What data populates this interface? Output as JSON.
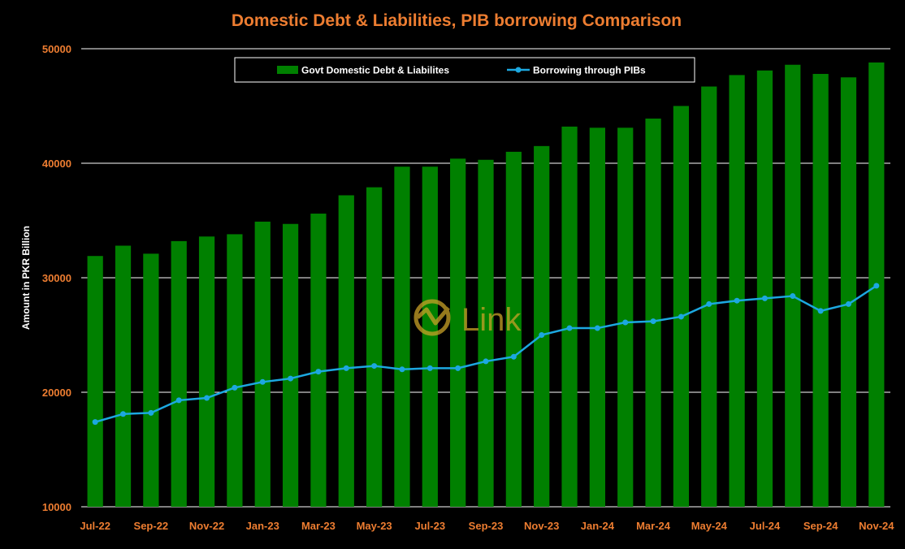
{
  "chart_data": {
    "type": "bar",
    "title": "Domestic Debt & Liabilities, PIB borrowing Comparison",
    "ylabel": "Amount in PKR Billion",
    "xlabel": "",
    "ylim": [
      10000,
      50000
    ],
    "yticks": [
      10000,
      20000,
      30000,
      40000,
      50000
    ],
    "grid": true,
    "legend_position": "top-center",
    "categories": [
      "Jul-22",
      "Aug-22",
      "Sep-22",
      "Oct-22",
      "Nov-22",
      "Dec-22",
      "Jan-23",
      "Feb-23",
      "Mar-23",
      "Apr-23",
      "May-23",
      "Jun-23",
      "Jul-23",
      "Aug-23",
      "Sep-23",
      "Oct-23",
      "Nov-23",
      "Dec-23",
      "Jan-24",
      "Feb-24",
      "Mar-24",
      "Apr-24",
      "May-24",
      "Jun-24",
      "Jul-24",
      "Aug-24",
      "Sep-24",
      "Oct-24",
      "Nov-24"
    ],
    "xtick_labels": [
      "Jul-22",
      "Sep-22",
      "Nov-22",
      "Jan-23",
      "Mar-23",
      "May-23",
      "Jul-23",
      "Sep-23",
      "Nov-23",
      "Jan-24",
      "Mar-24",
      "May-24",
      "Jul-24",
      "Sep-24",
      "Nov-24"
    ],
    "series": [
      {
        "name": "Govt Domestic Debt & Liabilites",
        "type": "bar",
        "color": "#008000",
        "values": [
          31900,
          32800,
          32100,
          33200,
          33600,
          33800,
          34900,
          34700,
          35600,
          37200,
          37900,
          39700,
          39700,
          40400,
          40300,
          41000,
          41500,
          43200,
          43100,
          43100,
          43900,
          45000,
          46700,
          47700,
          48100,
          48600,
          47800,
          47500,
          48800
        ]
      },
      {
        "name": "Borrowing through PIBs",
        "type": "line",
        "color": "#1ca8e0",
        "values": [
          17400,
          18100,
          18200,
          19300,
          19500,
          20400,
          20900,
          21200,
          21800,
          22100,
          22300,
          22000,
          22100,
          22100,
          22700,
          23100,
          25000,
          25600,
          25600,
          26100,
          26200,
          26600,
          27700,
          28000,
          28200,
          28400,
          27100,
          27700,
          29300
        ]
      }
    ],
    "watermark": "Link"
  },
  "colors": {
    "background": "#000000",
    "title": "#ed7d31",
    "axis_tick": "#ed7d31",
    "ylabel": "#ffffff",
    "grid": "#ffffff",
    "legend_text": "#ffffff",
    "watermark": "#c9a227"
  }
}
